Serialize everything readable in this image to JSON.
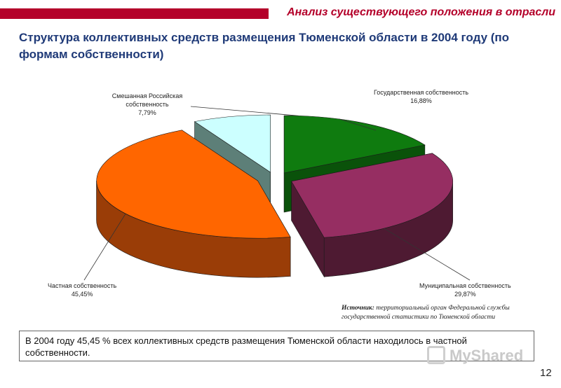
{
  "header": {
    "section_title": "Анализ существующего положения в отрасли"
  },
  "slide": {
    "title": "Структура коллективных средств размещения Тюменской области в 2004 году (по формам собственности)",
    "note": "В 2004 году 45,45 % всех коллективных средств размещения Тюменской области находилось в частной собственности.",
    "source_label": "Источник:",
    "source_text": "территориальный орган Федеральной службы государственной статистики по Тюменской области",
    "watermark": "MyShared",
    "page_number": "12"
  },
  "chart_data": {
    "type": "pie",
    "style": "3d-exploded",
    "slices": [
      {
        "label": "Государственная собственность",
        "value": 16.88,
        "value_label": "16,88%",
        "color": "#0f7b0f",
        "side": "#0a520a"
      },
      {
        "label": "Муниципальная собственность",
        "value": 29.87,
        "value_label": "29,87%",
        "color": "#962e62",
        "side": "#4e1a32"
      },
      {
        "label": "Частная собственность",
        "value": 45.45,
        "value_label": "45,45%",
        "color": "#ff6600",
        "side": "#9a3d07"
      },
      {
        "label": "Смешанная Российская собственность",
        "value": 7.79,
        "value_label": "7,79%",
        "color": "#ccffff",
        "side": "#5d7f78"
      }
    ]
  }
}
